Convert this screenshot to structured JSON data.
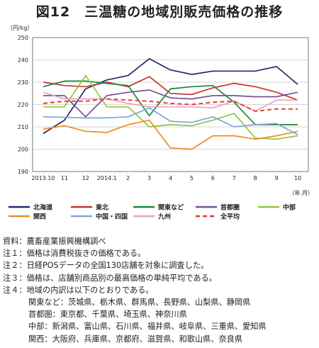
{
  "title": "図12　三温糖の地域別販売価格の推移",
  "chart_data": {
    "type": "line",
    "y_unit": "（円/kg）",
    "x_unit": "（年.月）",
    "ylim": [
      190,
      250
    ],
    "yticks": [
      190,
      200,
      210,
      220,
      230,
      240,
      250
    ],
    "categories": [
      "2013.10",
      "11",
      "12",
      "2014.1",
      "2",
      "3",
      "4",
      "5",
      "6",
      "7",
      "8",
      "9",
      "10"
    ],
    "grid": true,
    "legend_position": "bottom",
    "series": [
      {
        "name": "北海道",
        "color": "#1f2d6b",
        "dash": false,
        "values": [
          207,
          213,
          227,
          231,
          233,
          240.5,
          235.5,
          233.5,
          235,
          235,
          235,
          237,
          229
        ]
      },
      {
        "name": "東北",
        "color": "#c8362c",
        "dash": false,
        "values": [
          230,
          228.5,
          228,
          230,
          228,
          232.5,
          225,
          224.5,
          227.5,
          229.5,
          228,
          225.5,
          222
        ]
      },
      {
        "name": "関東など",
        "color": "#178a3c",
        "dash": false,
        "values": [
          228,
          230.5,
          230.5,
          229.5,
          228.5,
          215,
          227,
          228,
          228.5,
          221,
          211,
          211,
          211
        ]
      },
      {
        "name": "首都圏",
        "color": "#7a5196",
        "dash": false,
        "values": [
          224,
          224,
          214.5,
          224,
          225.5,
          226.5,
          223,
          222.5,
          224,
          224,
          223.5,
          223.5,
          225.5
        ]
      },
      {
        "name": "中部",
        "color": "#8dc63f",
        "dash": false,
        "values": [
          219,
          219,
          233,
          219,
          219,
          210,
          211,
          210.5,
          213,
          216,
          205,
          204.5,
          206
        ]
      },
      {
        "name": "関西",
        "color": "#f08a24",
        "dash": false,
        "values": [
          209,
          210.5,
          208,
          207.5,
          211,
          213,
          200.5,
          200,
          206,
          206,
          204.5,
          206,
          208
        ]
      },
      {
        "name": "中国・四国",
        "color": "#7ea6d8",
        "dash": false,
        "values": [
          214.5,
          214.3,
          214,
          214,
          214.5,
          218.5,
          212.5,
          212,
          214.5,
          210,
          211,
          211.5,
          206.5
        ]
      },
      {
        "name": "九州",
        "color": "#e3a3c3",
        "dash": false,
        "values": [
          225.5,
          222.5,
          222.5,
          222.5,
          220.5,
          219,
          219,
          219,
          218.5,
          221.5,
          217,
          222,
          222
        ]
      },
      {
        "name": "全平均",
        "color": "#e8372f",
        "dash": true,
        "values": [
          220.5,
          221.5,
          221.5,
          222.5,
          222,
          221.5,
          220.5,
          220,
          221,
          221.5,
          217,
          218,
          218
        ]
      }
    ]
  },
  "notes": [
    {
      "text": "資料：農畜産業振興機構調べ",
      "cls": ""
    },
    {
      "text": "注１：価格は消費税抜きの価格である。",
      "cls": ""
    },
    {
      "text": "注２：日経POSデータの全国130店舗を対象に調査した。",
      "cls": ""
    },
    {
      "text": "注３：価格は、店舗別商品別の最高価格の単純平均である。",
      "cls": ""
    },
    {
      "text": "注４：地域の内訳は以下のとおりである。",
      "cls": ""
    },
    {
      "text": "関東など：茨城県、栃木県、群馬県、長野県、山梨県、静岡県",
      "cls": "ind1"
    },
    {
      "text": "首都圏：東京都、千葉県、埼玉県、神奈川県",
      "cls": "ind1"
    },
    {
      "text": "中部：新潟県、富山県、石川県、福井県、岐阜県、三重県、愛知県",
      "cls": "ind1"
    },
    {
      "text": "関西：大阪府、兵庫県、京都府、滋賀県、和歌山県、奈良県",
      "cls": "ind1"
    }
  ]
}
